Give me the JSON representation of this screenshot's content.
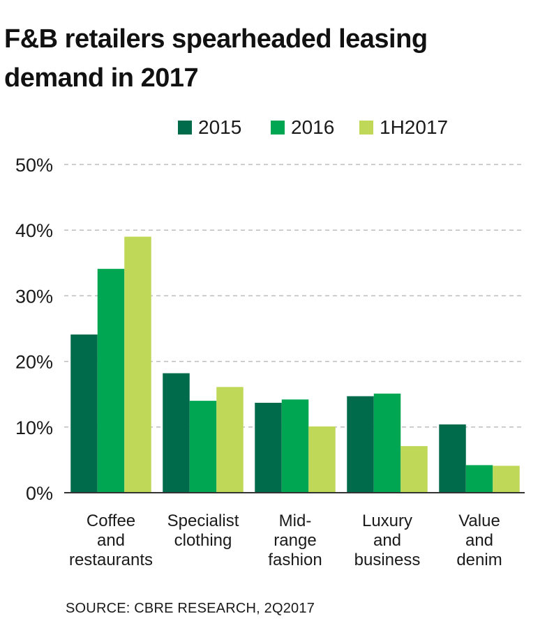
{
  "chart_data": {
    "type": "bar",
    "title": "F&B retailers spearheaded leasing demand in 2017",
    "title_lines": [
      "F&B retailers spearheaded leasing",
      "demand in 2017"
    ],
    "categories": [
      [
        "Coffee",
        "and",
        "restaurants"
      ],
      [
        "Specialist",
        "clothing"
      ],
      [
        "Mid-",
        "range",
        "fashion"
      ],
      [
        "Luxury",
        "and",
        "business"
      ],
      [
        "Value",
        "and",
        "denim"
      ]
    ],
    "series": [
      {
        "name": "2015",
        "color": "#006b4a",
        "values": [
          24.1,
          18.2,
          13.7,
          14.7,
          10.4
        ]
      },
      {
        "name": "2016",
        "color": "#00a651",
        "values": [
          34.1,
          14.0,
          14.2,
          15.1,
          4.2
        ]
      },
      {
        "name": "1H2017",
        "color": "#bfd858",
        "values": [
          39.0,
          16.1,
          10.1,
          7.1,
          4.1
        ]
      }
    ],
    "ylim": [
      0,
      50
    ],
    "yticks": [
      {
        "value": 0,
        "label": "0%"
      },
      {
        "value": 10,
        "label": "10%"
      },
      {
        "value": 20,
        "label": "20%"
      },
      {
        "value": 30,
        "label": "30%"
      },
      {
        "value": 40,
        "label": "40%"
      },
      {
        "value": 50,
        "label": "50%"
      }
    ],
    "grid": true,
    "legend_position": "top"
  },
  "source": "SOURCE: CBRE RESEARCH, 2Q2017"
}
